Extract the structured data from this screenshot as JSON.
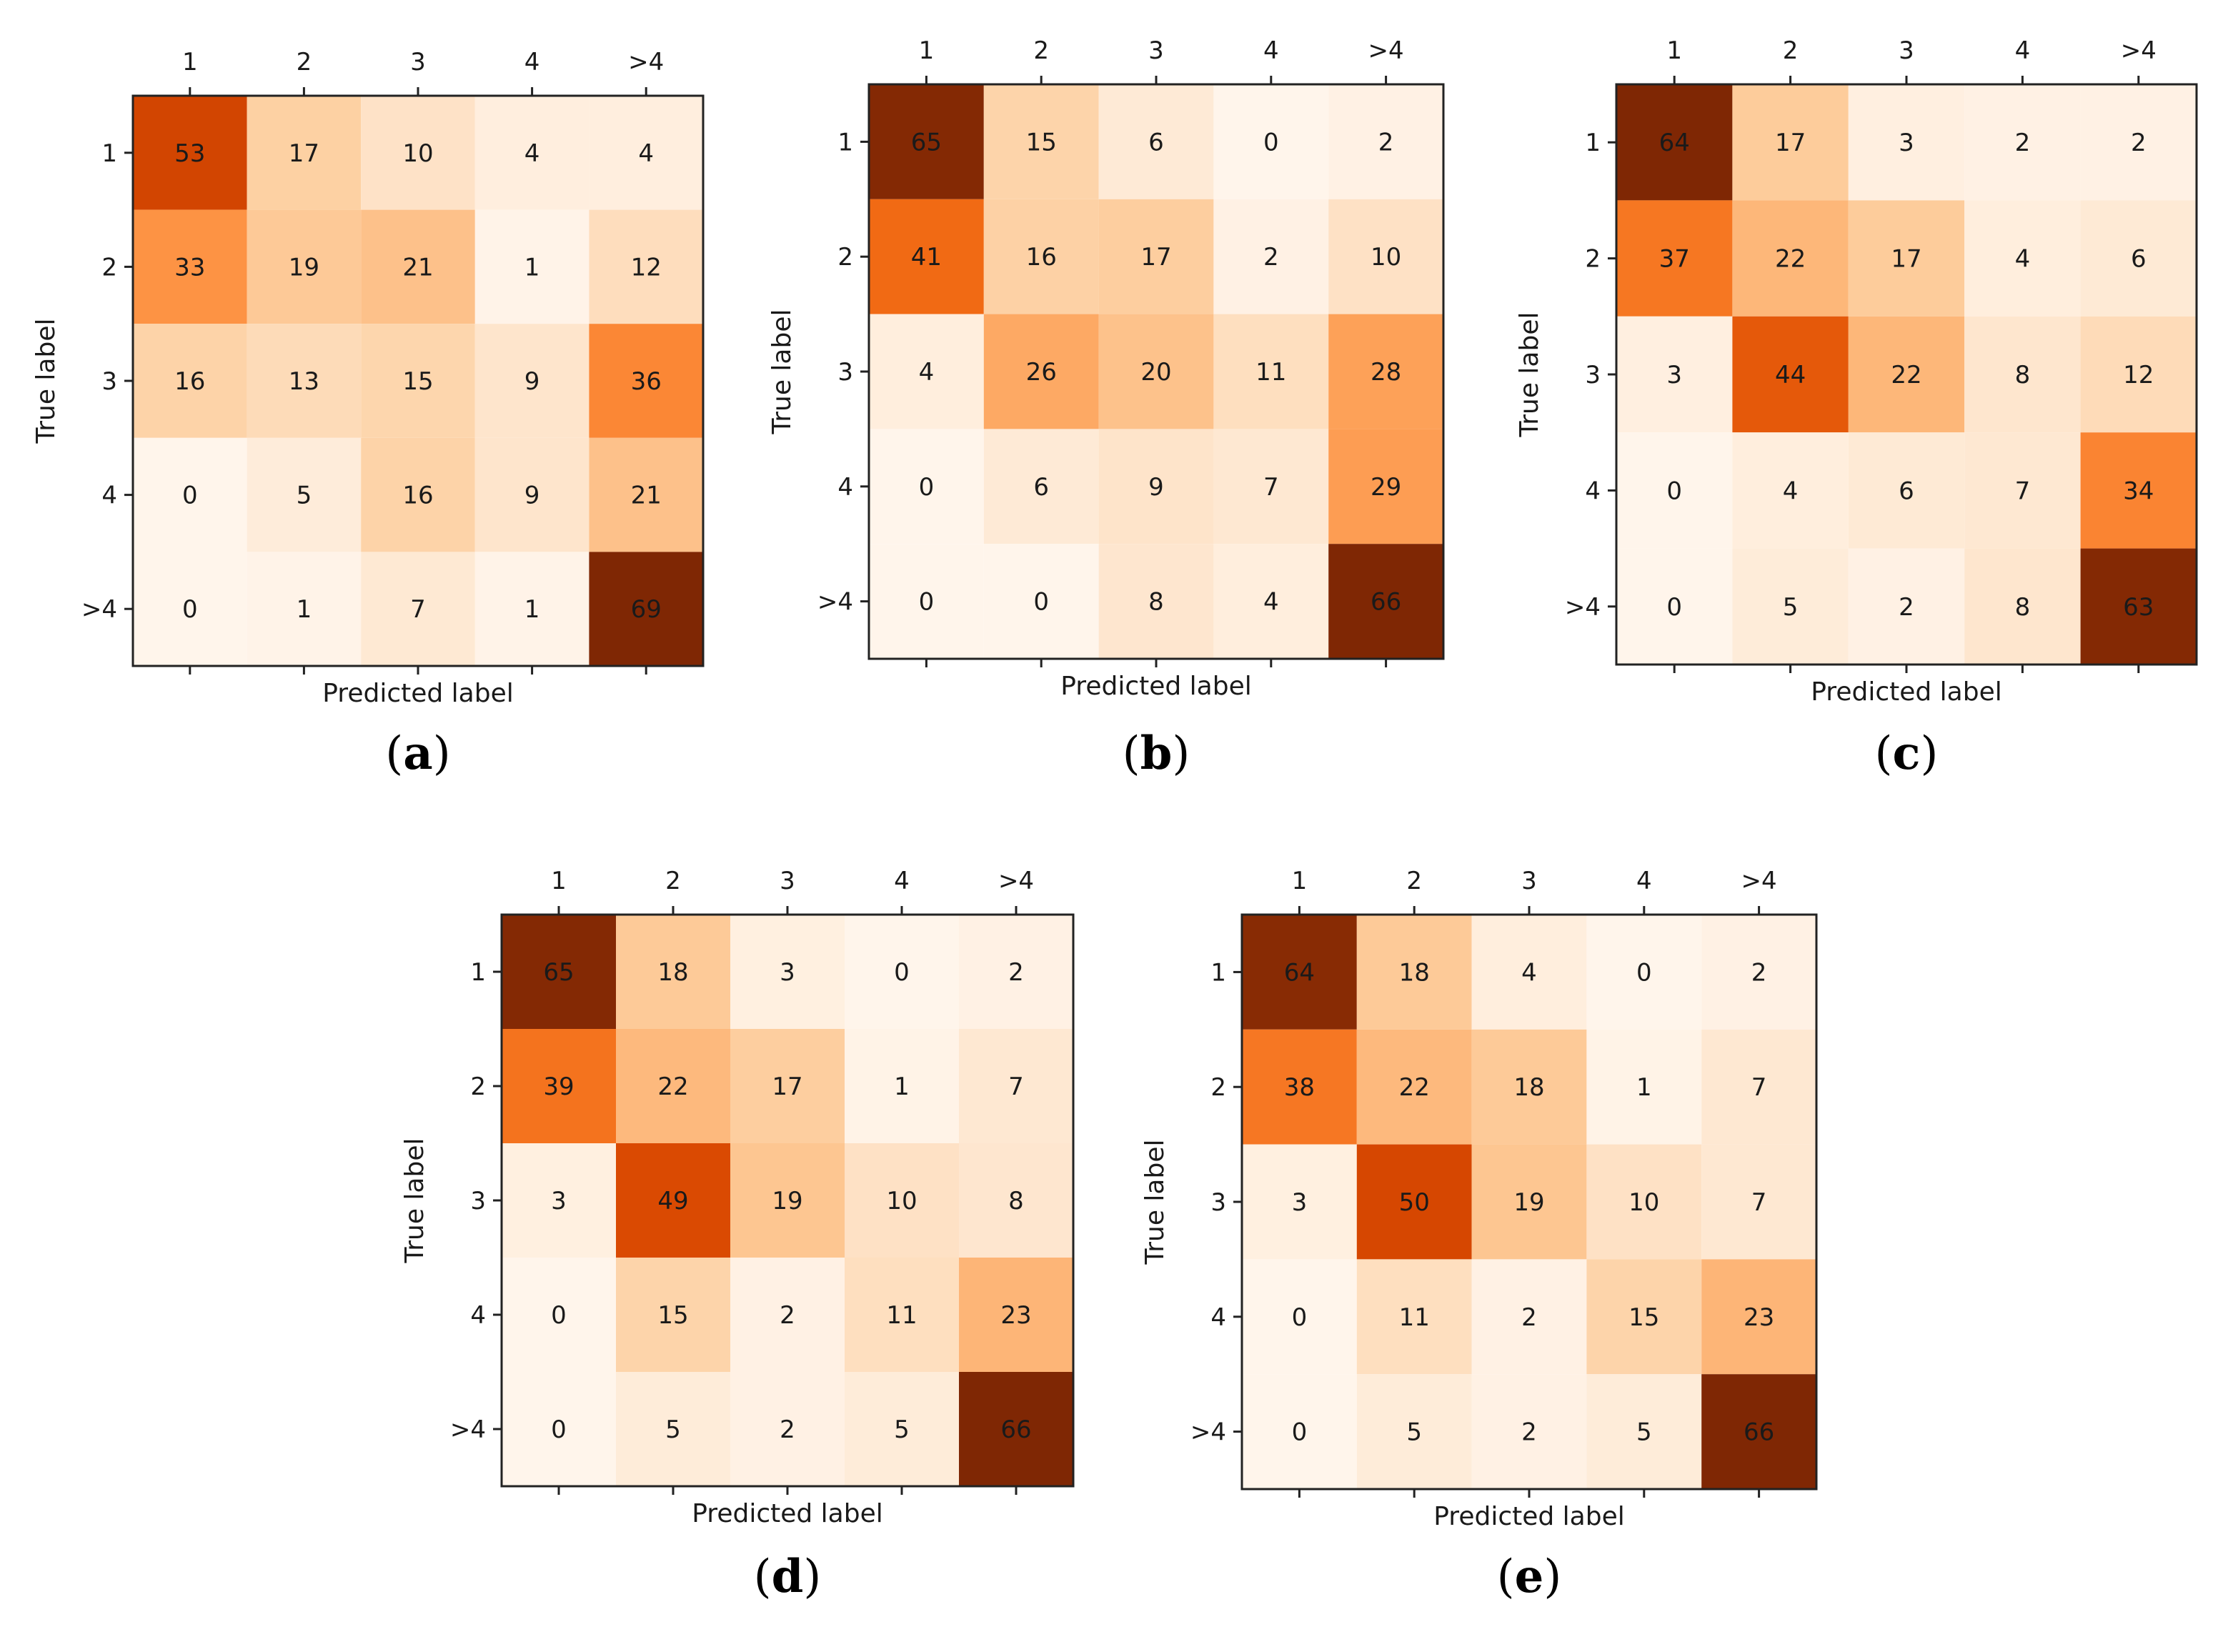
{
  "figure_title": "",
  "chart_data": [
    {
      "type": "heatmap",
      "panel": "a",
      "caption_open": "(",
      "caption_letter": "a",
      "caption_close": ")",
      "xlabel": "Predicted label",
      "ylabel": "True label",
      "x_categories": [
        "1",
        "2",
        "3",
        "4",
        ">4"
      ],
      "y_categories": [
        "1",
        "2",
        "3",
        "4",
        ">4"
      ],
      "values": [
        [
          53,
          17,
          10,
          4,
          4
        ],
        [
          33,
          19,
          21,
          1,
          12
        ],
        [
          16,
          13,
          15,
          9,
          36
        ],
        [
          0,
          5,
          16,
          9,
          21
        ],
        [
          0,
          1,
          7,
          1,
          69
        ]
      ],
      "colormap": "Oranges",
      "vmin": 0,
      "vmax": 69
    },
    {
      "type": "heatmap",
      "panel": "b",
      "caption_open": "(",
      "caption_letter": "b",
      "caption_close": ")",
      "xlabel": "Predicted label",
      "ylabel": "True label",
      "x_categories": [
        "1",
        "2",
        "3",
        "4",
        ">4"
      ],
      "y_categories": [
        "1",
        "2",
        "3",
        "4",
        ">4"
      ],
      "values": [
        [
          65,
          15,
          6,
          0,
          2
        ],
        [
          41,
          16,
          17,
          2,
          10
        ],
        [
          4,
          26,
          20,
          11,
          28
        ],
        [
          0,
          6,
          9,
          7,
          29
        ],
        [
          0,
          0,
          8,
          4,
          66
        ]
      ],
      "colormap": "Oranges",
      "vmin": 0,
      "vmax": 66
    },
    {
      "type": "heatmap",
      "panel": "c",
      "caption_open": "(",
      "caption_letter": "c",
      "caption_close": ")",
      "xlabel": "Predicted label",
      "ylabel": "True label",
      "x_categories": [
        "1",
        "2",
        "3",
        "4",
        ">4"
      ],
      "y_categories": [
        "1",
        "2",
        "3",
        "4",
        ">4"
      ],
      "values": [
        [
          64,
          17,
          3,
          2,
          2
        ],
        [
          37,
          22,
          17,
          4,
          6
        ],
        [
          3,
          44,
          22,
          8,
          12
        ],
        [
          0,
          4,
          6,
          7,
          34
        ],
        [
          0,
          5,
          2,
          8,
          63
        ]
      ],
      "colormap": "Oranges",
      "vmin": 0,
      "vmax": 64
    },
    {
      "type": "heatmap",
      "panel": "d",
      "caption_open": "(",
      "caption_letter": "d",
      "caption_close": ")",
      "xlabel": "Predicted label",
      "ylabel": "True label",
      "x_categories": [
        "1",
        "2",
        "3",
        "4",
        ">4"
      ],
      "y_categories": [
        "1",
        "2",
        "3",
        "4",
        ">4"
      ],
      "values": [
        [
          65,
          18,
          3,
          0,
          2
        ],
        [
          39,
          22,
          17,
          1,
          7
        ],
        [
          3,
          49,
          19,
          10,
          8
        ],
        [
          0,
          15,
          2,
          11,
          23
        ],
        [
          0,
          5,
          2,
          5,
          66
        ]
      ],
      "colormap": "Oranges",
      "vmin": 0,
      "vmax": 66
    },
    {
      "type": "heatmap",
      "panel": "e",
      "caption_open": "(",
      "caption_letter": "e",
      "caption_close": ")",
      "xlabel": "Predicted label",
      "ylabel": "True label",
      "x_categories": [
        "1",
        "2",
        "3",
        "4",
        ">4"
      ],
      "y_categories": [
        "1",
        "2",
        "3",
        "4",
        ">4"
      ],
      "values": [
        [
          64,
          18,
          4,
          0,
          2
        ],
        [
          38,
          22,
          18,
          1,
          7
        ],
        [
          3,
          50,
          19,
          10,
          7
        ],
        [
          0,
          11,
          2,
          15,
          23
        ],
        [
          0,
          5,
          2,
          5,
          66
        ]
      ],
      "colormap": "Oranges",
      "vmin": 0,
      "vmax": 66
    }
  ]
}
